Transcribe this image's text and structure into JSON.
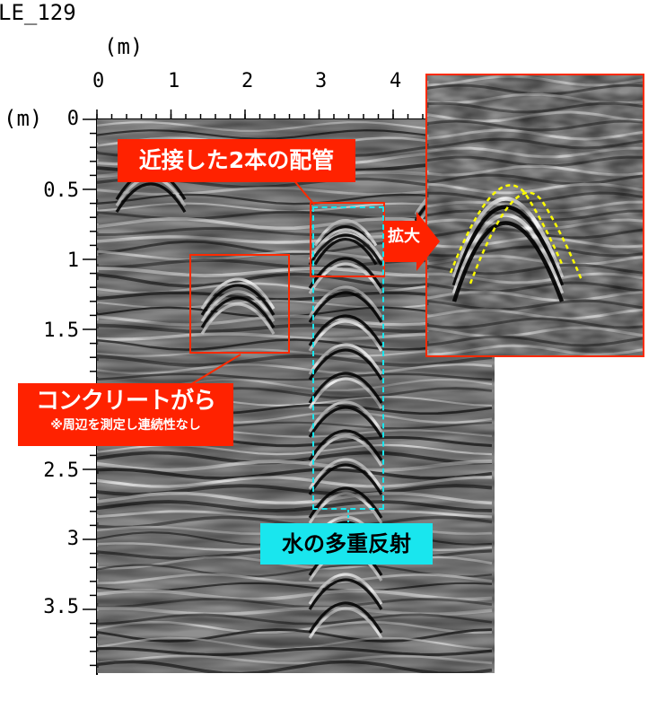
{
  "header": {
    "file_label": "LE_129",
    "x_unit": "(m)",
    "y_unit": "(m)"
  },
  "axes": {
    "x_ticks": [
      "0",
      "1",
      "2",
      "3",
      "4"
    ],
    "y_ticks": [
      "0",
      "0.5",
      "1",
      "1.5",
      "2.5",
      "3",
      "3.5"
    ]
  },
  "annotations": {
    "pipes_label": "近接した2本の配管",
    "zoom_label": "拡大",
    "rubble_title": "コンクリートがら",
    "rubble_note": "※周辺を測定し連続性なし",
    "water_label": "水の多重反射"
  },
  "colors": {
    "callout_red": "#ff2200",
    "callout_cyan": "#19e6ee",
    "highlight_yellow": "#ffff00"
  }
}
